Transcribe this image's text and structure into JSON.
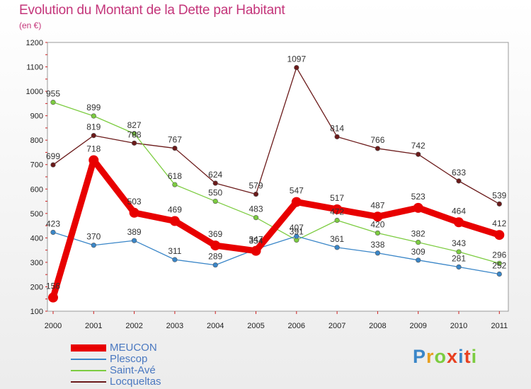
{
  "title": "Evolution du Montant de la Dette par Habitant",
  "unit": "(en €)",
  "logo": "Proxiti",
  "chart_data": {
    "type": "line",
    "x": [
      "2000",
      "2001",
      "2002",
      "2003",
      "2004",
      "2005",
      "2006",
      "2007",
      "2008",
      "2009",
      "2010",
      "2011"
    ],
    "ylim": [
      100,
      1200
    ],
    "yticks": [
      100,
      200,
      300,
      400,
      500,
      600,
      700,
      800,
      900,
      1000,
      1100,
      1200
    ],
    "grid": false,
    "legend_position": "bottom-left",
    "series": [
      {
        "name": "MEUCON",
        "color": "#e80000",
        "values": [
          156,
          718,
          503,
          469,
          369,
          347,
          547,
          517,
          487,
          523,
          464,
          412
        ]
      },
      {
        "name": "Plescop",
        "color": "#3a86c8",
        "values": [
          423,
          370,
          389,
          311,
          289,
          354,
          407,
          361,
          338,
          309,
          281,
          252
        ]
      },
      {
        "name": "Saint-Avé",
        "color": "#7ccc40",
        "values": [
          955,
          899,
          827,
          618,
          550,
          483,
          391,
          472,
          420,
          382,
          343,
          296
        ]
      },
      {
        "name": "Locqueltas",
        "color": "#6b1a1a",
        "values": [
          699,
          819,
          788,
          767,
          624,
          579,
          1097,
          814,
          766,
          742,
          633,
          539
        ]
      }
    ]
  }
}
